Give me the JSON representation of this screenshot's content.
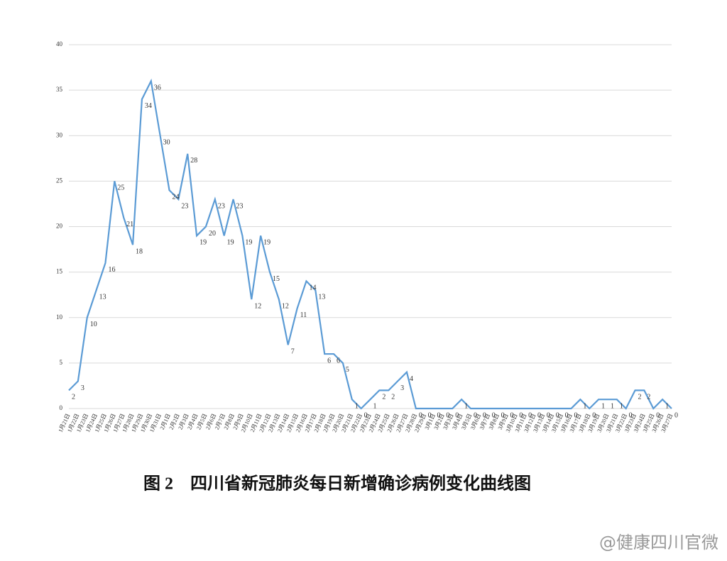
{
  "chart_data": {
    "type": "line",
    "title": "图 2　四川省新冠肺炎每日新增确诊病例变化曲线图",
    "watermark": "@健康四川官微",
    "categories": [
      "1月21日",
      "1月22日",
      "1月23日",
      "1月24日",
      "1月25日",
      "1月26日",
      "1月27日",
      "1月28日",
      "1月29日",
      "1月30日",
      "1月31日",
      "2月1日",
      "2月2日",
      "2月3日",
      "2月4日",
      "2月5日",
      "2月6日",
      "2月7日",
      "2月8日",
      "2月9日",
      "2月10日",
      "2月11日",
      "2月12日",
      "2月13日",
      "2月14日",
      "2月15日",
      "2月16日",
      "2月17日",
      "2月18日",
      "2月19日",
      "2月20日",
      "2月21日",
      "2月22日",
      "2月23日",
      "2月24日",
      "2月25日",
      "2月26日",
      "2月27日",
      "2月28日",
      "2月29日",
      "3月1日",
      "3月2日",
      "3月3日",
      "3月4日",
      "3月5日",
      "3月6日",
      "3月7日",
      "3月8日",
      "3月9日",
      "3月10日",
      "3月11日",
      "3月12日",
      "3月13日",
      "3月14日",
      "3月15日",
      "3月16日",
      "3月17日",
      "3月18日",
      "3月19日",
      "3月20日",
      "3月21日",
      "3月22日",
      "3月23日",
      "3月24日",
      "3月25日",
      "3月26日",
      "3月27日"
    ],
    "series": [
      {
        "color": "#5b9bd5",
        "values": [
          2,
          3,
          10,
          13,
          16,
          25,
          21,
          18,
          34,
          36,
          30,
          24,
          23,
          28,
          19,
          20,
          23,
          19,
          23,
          19,
          12,
          19,
          15,
          12,
          7,
          11,
          14,
          13,
          6,
          6,
          5,
          1,
          0,
          1,
          2,
          2,
          3,
          4,
          0,
          0,
          0,
          0,
          0,
          1,
          0,
          0,
          0,
          0,
          0,
          0,
          0,
          0,
          0,
          0,
          0,
          0,
          1,
          0,
          1,
          1,
          1,
          0,
          2,
          2,
          0,
          1,
          0
        ]
      }
    ],
    "ylim": [
      0,
      40
    ],
    "yticks": [
      0,
      5,
      10,
      15,
      20,
      25,
      30,
      35,
      40
    ],
    "grid": true
  }
}
